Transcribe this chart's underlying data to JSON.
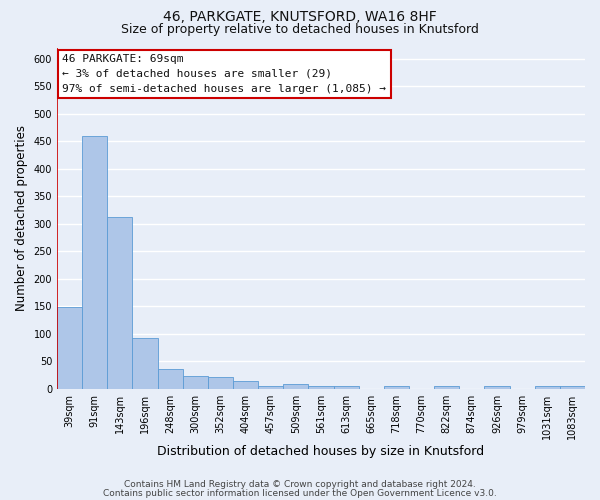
{
  "title": "46, PARKGATE, KNUTSFORD, WA16 8HF",
  "subtitle": "Size of property relative to detached houses in Knutsford",
  "xlabel": "Distribution of detached houses by size in Knutsford",
  "ylabel": "Number of detached properties",
  "categories": [
    "39sqm",
    "91sqm",
    "143sqm",
    "196sqm",
    "248sqm",
    "300sqm",
    "352sqm",
    "404sqm",
    "457sqm",
    "509sqm",
    "561sqm",
    "613sqm",
    "665sqm",
    "718sqm",
    "770sqm",
    "822sqm",
    "874sqm",
    "926sqm",
    "979sqm",
    "1031sqm",
    "1083sqm"
  ],
  "values": [
    148,
    460,
    313,
    93,
    36,
    23,
    22,
    14,
    6,
    8,
    6,
    5,
    0,
    6,
    0,
    5,
    0,
    5,
    0,
    6,
    5
  ],
  "bar_color": "#aec6e8",
  "bar_edge_color": "#5b9bd5",
  "bg_color": "#e8eef8",
  "grid_color": "#ffffff",
  "annotation_text": "46 PARKGATE: 69sqm\n← 3% of detached houses are smaller (29)\n97% of semi-detached houses are larger (1,085) →",
  "annotation_box_facecolor": "#ffffff",
  "annotation_box_edgecolor": "#cc0000",
  "marker_line_color": "#cc0000",
  "ylim": [
    0,
    620
  ],
  "yticks": [
    0,
    50,
    100,
    150,
    200,
    250,
    300,
    350,
    400,
    450,
    500,
    550,
    600
  ],
  "footer_line1": "Contains HM Land Registry data © Crown copyright and database right 2024.",
  "footer_line2": "Contains public sector information licensed under the Open Government Licence v3.0.",
  "title_fontsize": 10,
  "subtitle_fontsize": 9,
  "ylabel_fontsize": 8.5,
  "xlabel_fontsize": 9,
  "tick_fontsize": 7,
  "annotation_fontsize": 8,
  "footer_fontsize": 6.5
}
